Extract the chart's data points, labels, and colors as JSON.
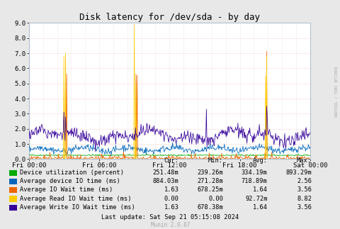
{
  "title": "Disk latency for /dev/sda - by day",
  "bg_color": "#e8e8e8",
  "plot_bg_color": "#ffffff",
  "grid_h_color": "#ffaaaa",
  "grid_v_color": "#ccccdd",
  "spine_color": "#aabbcc",
  "ylim": [
    0.0,
    9.0
  ],
  "yticks": [
    0.0,
    1.0,
    2.0,
    3.0,
    4.0,
    5.0,
    6.0,
    7.0,
    8.0,
    9.0
  ],
  "xtick_labels": [
    "Fri 00:00",
    "Fri 06:00",
    "Fri 12:00",
    "Fri 18:00",
    "Sat 00:00"
  ],
  "watermark": "RRDTOOL / TOBI OETIKER",
  "munin_version": "Munin 2.0.67",
  "last_update": "Last update: Sat Sep 21 05:15:08 2024",
  "legend": [
    {
      "label": "Device utilization (percent)",
      "color": "#00aa00"
    },
    {
      "label": "Average device IO time (ms)",
      "color": "#0066bb"
    },
    {
      "label": "Average IO Wait time (ms)",
      "color": "#ee6600"
    },
    {
      "label": "Average Read IO Wait time (ms)",
      "color": "#ffcc00"
    },
    {
      "label": "Average Write IO Wait time (ms)",
      "color": "#330099"
    }
  ],
  "legend_stats": [
    {
      "cur": "251.48m",
      "min": "239.26m",
      "avg": "334.19m",
      "max": "893.29m"
    },
    {
      "cur": "884.03m",
      "min": "271.28m",
      "avg": "718.89m",
      "max": "2.56"
    },
    {
      "cur": "1.63",
      "min": "678.25m",
      "avg": "1.64",
      "max": "3.56"
    },
    {
      "cur": "0.00",
      "min": "0.00",
      "avg": "92.72m",
      "max": "8.82"
    },
    {
      "cur": "1.63",
      "min": "678.38m",
      "avg": "1.64",
      "max": "3.56"
    }
  ],
  "n_points": 500,
  "seed": 42
}
